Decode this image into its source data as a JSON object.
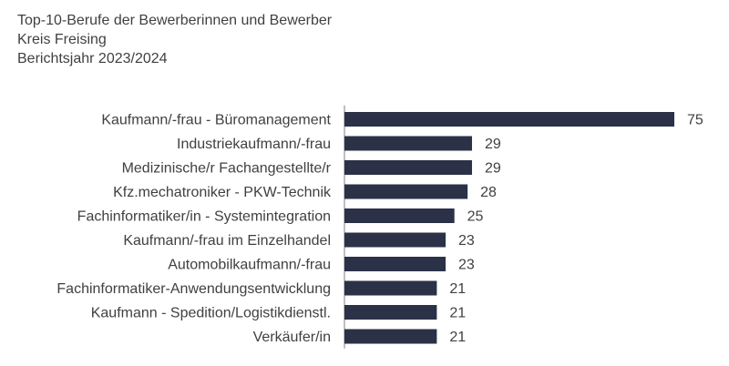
{
  "header": {
    "title": "Top-10-Berufe der Bewerberinnen und Bewerber",
    "region": "Kreis Freising",
    "period": "Berichtsjahr 2023/2024"
  },
  "colors": {
    "bar": "#2b3147",
    "axis": "#7f7f7f",
    "text": "#404040"
  },
  "chart_data": {
    "type": "bar",
    "orientation": "horizontal",
    "title": "Top-10-Berufe der Bewerberinnen und Bewerber",
    "subtitle": "Kreis Freising / Berichtsjahr 2023/2024",
    "xlabel": "",
    "ylabel": "",
    "xlim": [
      0,
      80
    ],
    "grid": false,
    "legend": "none",
    "categories": [
      "Kaufmann/-frau - Büromanagement",
      "Industriekaufmann/-frau",
      "Medizinische/r Fachangestellte/r",
      "Kfz.mechatroniker - PKW-Technik",
      "Fachinformatiker/in - Systemintegration",
      "Kaufmann/-frau im Einzelhandel",
      "Automobilkaufmann/-frau",
      "Fachinformatiker-Anwendungsentwicklung",
      "Kaufmann - Spedition/Logistikdienstl.",
      "Verkäufer/in"
    ],
    "values": [
      75,
      29,
      29,
      28,
      25,
      23,
      23,
      21,
      21,
      21
    ]
  }
}
